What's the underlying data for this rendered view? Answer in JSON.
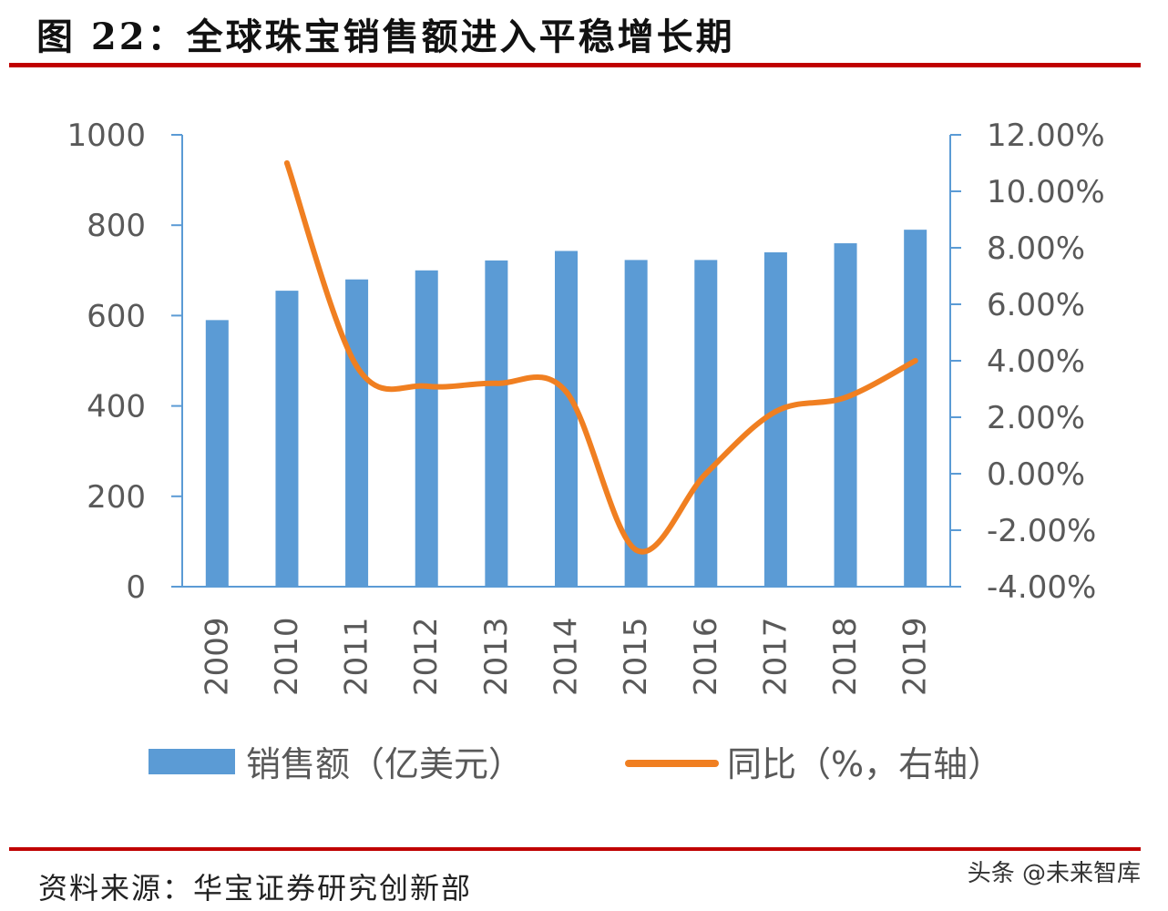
{
  "figure": {
    "title": "图 22：全球珠宝销售额进入平稳增长期",
    "source": "资料来源：华宝证券研究创新部",
    "watermark": "头条 @未来智库"
  },
  "colors": {
    "bar": "#5b9bd5",
    "line": "#f07f21",
    "axis": "#5b9bd5",
    "rule": "#c00000",
    "tick_text": "#595959"
  },
  "chart_data": {
    "type": "bar",
    "title": "",
    "xlabel": "",
    "ylabel": "",
    "categories": [
      "2009",
      "2010",
      "2011",
      "2012",
      "2013",
      "2014",
      "2015",
      "2016",
      "2017",
      "2018",
      "2019"
    ],
    "series": [
      {
        "name": "销售额（亿美元）",
        "type": "bar",
        "axis": "left",
        "values": [
          590,
          655,
          680,
          700,
          722,
          743,
          723,
          723,
          740,
          760,
          790
        ]
      },
      {
        "name": "同比（%，右轴）",
        "type": "line",
        "axis": "right",
        "values": [
          null,
          11.0,
          3.8,
          3.1,
          3.2,
          2.9,
          -2.7,
          0.0,
          2.2,
          2.7,
          4.0
        ]
      }
    ],
    "y_left": {
      "lim": [
        0,
        1000
      ],
      "ticks": [
        0,
        200,
        400,
        600,
        800,
        1000
      ],
      "tick_labels": [
        "0",
        "200",
        "400",
        "600",
        "800",
        "1000"
      ]
    },
    "y_right": {
      "lim": [
        -4,
        12
      ],
      "ticks": [
        -4,
        -2,
        0,
        2,
        4,
        6,
        8,
        10,
        12
      ],
      "tick_labels": [
        "-4.00%",
        "-2.00%",
        "0.00%",
        "2.00%",
        "4.00%",
        "6.00%",
        "8.00%",
        "10.00%",
        "12.00%"
      ]
    },
    "grid": false,
    "legend": "bottom"
  }
}
